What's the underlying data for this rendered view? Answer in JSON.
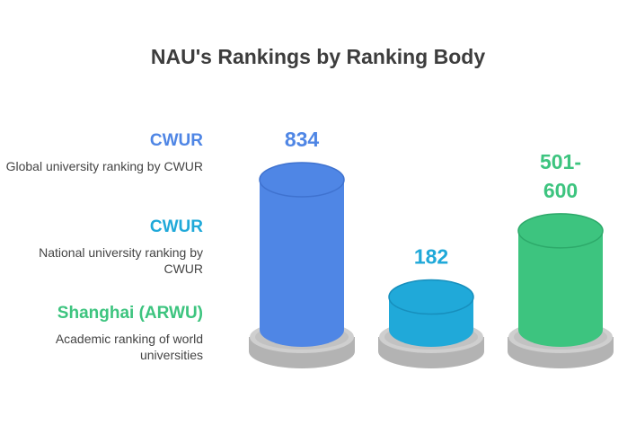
{
  "chart_data": {
    "type": "bar",
    "title": "NAU's Rankings by Ranking Body",
    "categories": [
      "Global university ranking by CWUR",
      "National university ranking by CWUR",
      "Academic ranking of world universities"
    ],
    "series": [
      {
        "values": [
          834,
          182,
          550
        ],
        "labels": [
          "834",
          "182",
          "501-\n600"
        ]
      }
    ],
    "legend": [
      {
        "name": "CWUR",
        "description": "Global university ranking by CWUR",
        "color": "#4f86e5"
      },
      {
        "name": "CWUR",
        "description": "National university ranking by CWUR",
        "color": "#20a9d9"
      },
      {
        "name": "Shanghai (ARWU)",
        "description": "Academic ranking of world universities",
        "color": "#3dc47f"
      }
    ],
    "legend_placement": "left",
    "grid": false
  }
}
